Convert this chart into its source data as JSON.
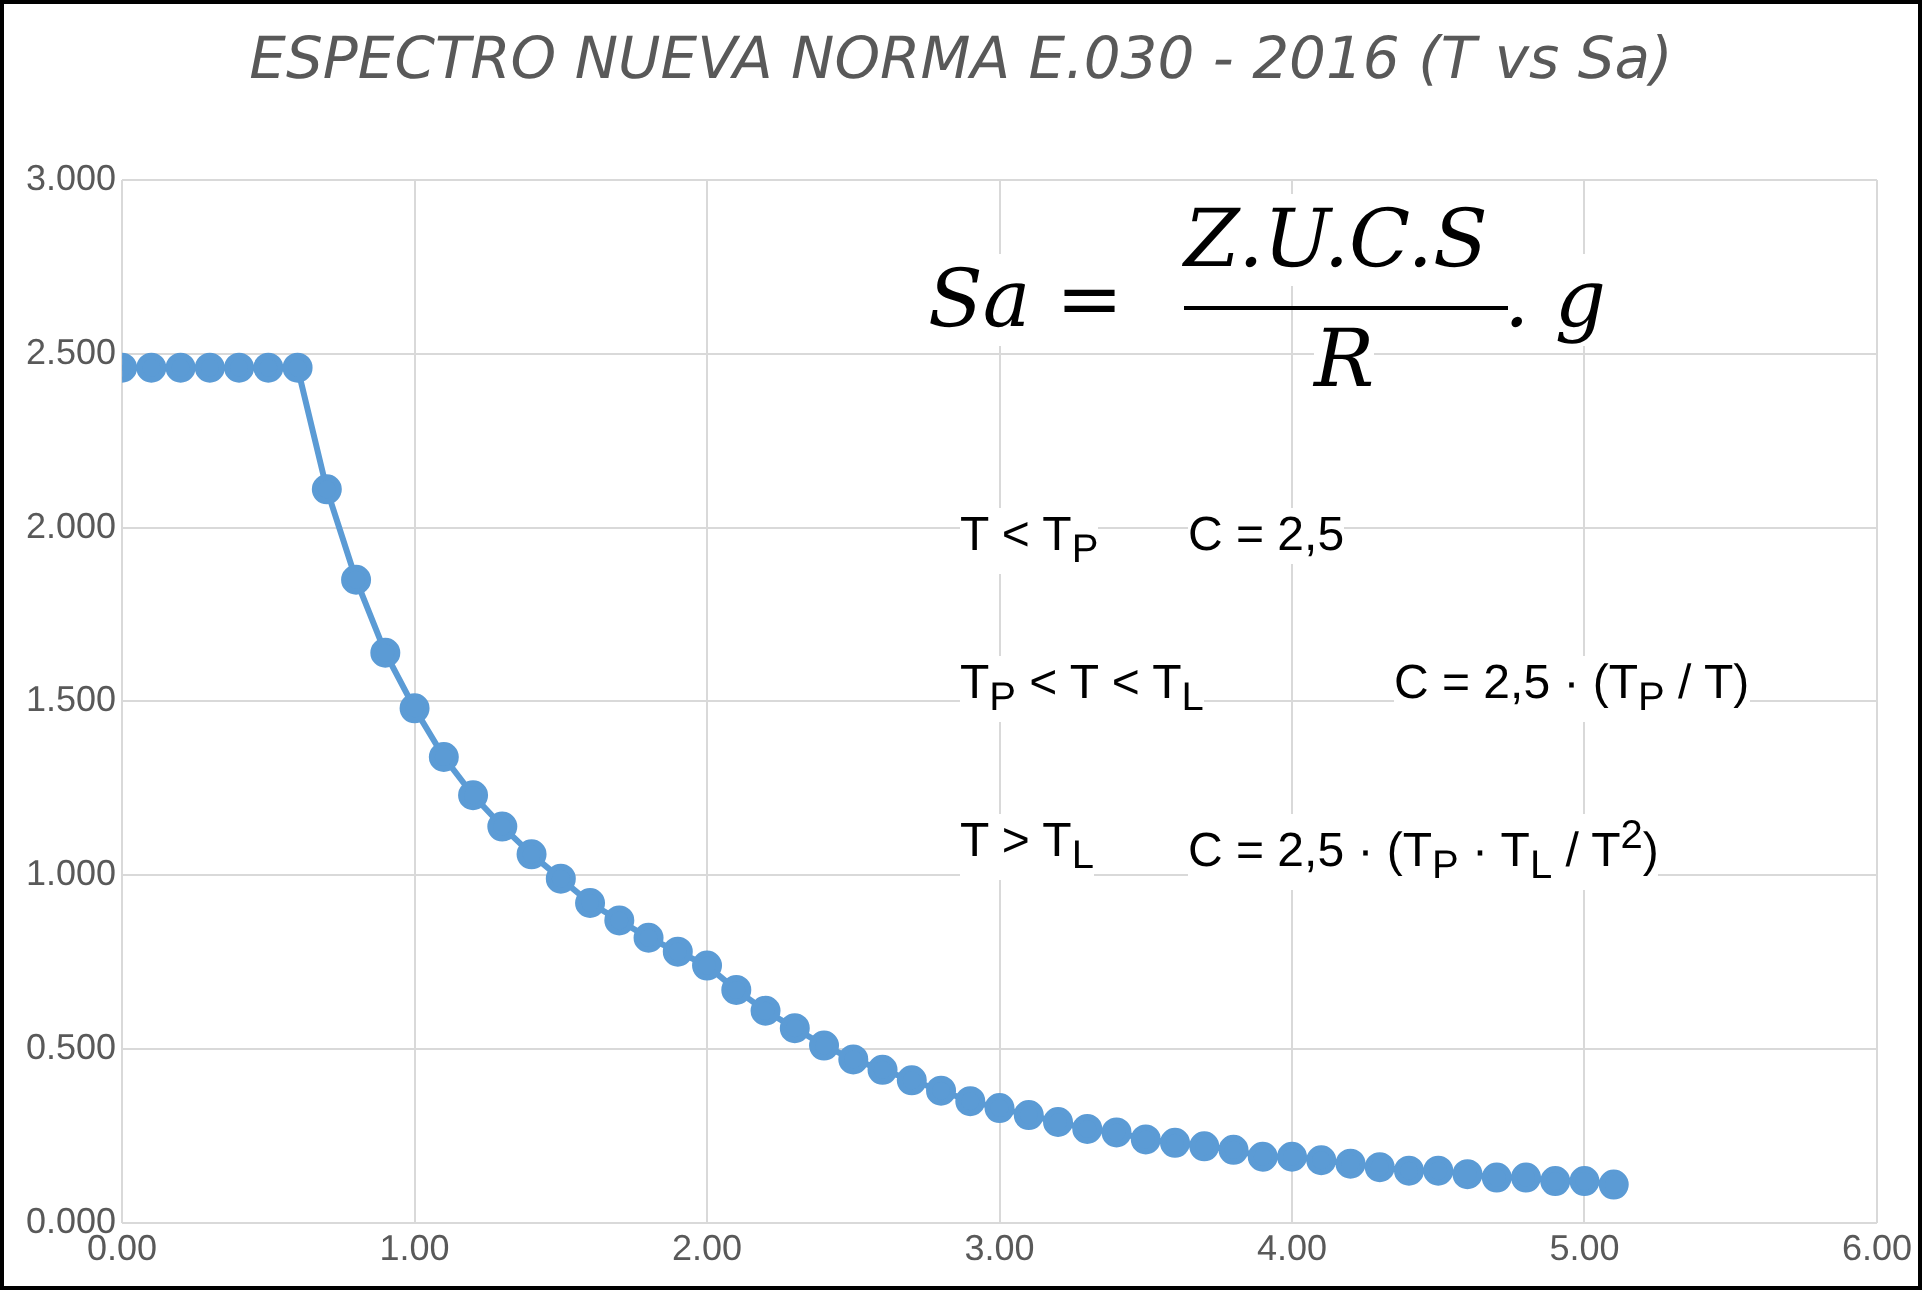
{
  "chart_data": {
    "type": "line",
    "title": "ESPECTRO NUEVA NORMA E.030 - 2016 (T vs Sa)",
    "x": [
      0,
      0.1,
      0.2,
      0.3,
      0.4,
      0.5,
      0.6,
      0.7,
      0.8,
      0.9,
      1.0,
      1.1,
      1.2,
      1.3,
      1.4,
      1.5,
      1.6,
      1.7,
      1.8,
      1.9,
      2.0,
      2.1,
      2.2,
      2.3,
      2.4,
      2.5,
      2.6,
      2.7,
      2.8,
      2.9,
      3.0,
      3.1,
      3.2,
      3.3,
      3.4,
      3.5,
      3.6,
      3.7,
      3.8,
      3.9,
      4.0,
      4.1,
      4.2,
      4.3,
      4.4,
      4.5,
      4.6,
      4.7,
      4.8,
      4.9,
      5.0,
      5.1
    ],
    "series": [
      {
        "color": "#5b9bd5",
        "values": [
          2.46,
          2.46,
          2.46,
          2.46,
          2.46,
          2.46,
          2.46,
          2.11,
          1.85,
          1.64,
          1.48,
          1.34,
          1.23,
          1.14,
          1.06,
          0.99,
          0.92,
          0.87,
          0.82,
          0.78,
          0.74,
          0.67,
          0.61,
          0.56,
          0.51,
          0.47,
          0.44,
          0.41,
          0.38,
          0.35,
          0.33,
          0.31,
          0.29,
          0.27,
          0.26,
          0.24,
          0.23,
          0.22,
          0.21,
          0.19,
          0.19,
          0.18,
          0.17,
          0.16,
          0.15,
          0.15,
          0.14,
          0.13,
          0.13,
          0.12,
          0.12,
          0.11
        ]
      }
    ],
    "xlim": [
      0,
      6
    ],
    "xticks": [
      {
        "value": 0,
        "label": "0.00"
      },
      {
        "value": 1,
        "label": "1.00"
      },
      {
        "value": 2,
        "label": "2.00"
      },
      {
        "value": 3,
        "label": "3.00"
      },
      {
        "value": 4,
        "label": "4.00"
      },
      {
        "value": 5,
        "label": "5.00"
      },
      {
        "value": 6,
        "label": "6.00"
      }
    ],
    "ylim": [
      0,
      3
    ],
    "yticks": [
      {
        "value": 0,
        "label": "0.000"
      },
      {
        "value": 0.5,
        "label": "0.500"
      },
      {
        "value": 1,
        "label": "1.000"
      },
      {
        "value": 1.5,
        "label": "1.500"
      },
      {
        "value": 2,
        "label": "2.000"
      },
      {
        "value": 2.5,
        "label": "2.500"
      },
      {
        "value": 3,
        "label": "3.000"
      }
    ],
    "grid": true,
    "legend": false,
    "marker": "circle",
    "line_style": "solid",
    "annotations": [
      "Sa =",
      "Z.U.C.S",
      "R",
      ". g",
      "T < T$_{P}$",
      "C = 2,5",
      "T$_{P}$ < T < T$_{L}$",
      "C = 2,5 · (T$_{P}$ / T)",
      "T > T$_{L}$",
      "C = 2,5 · (T$_{P}$ · T$_{L}$ / T$^{2}$)"
    ]
  }
}
